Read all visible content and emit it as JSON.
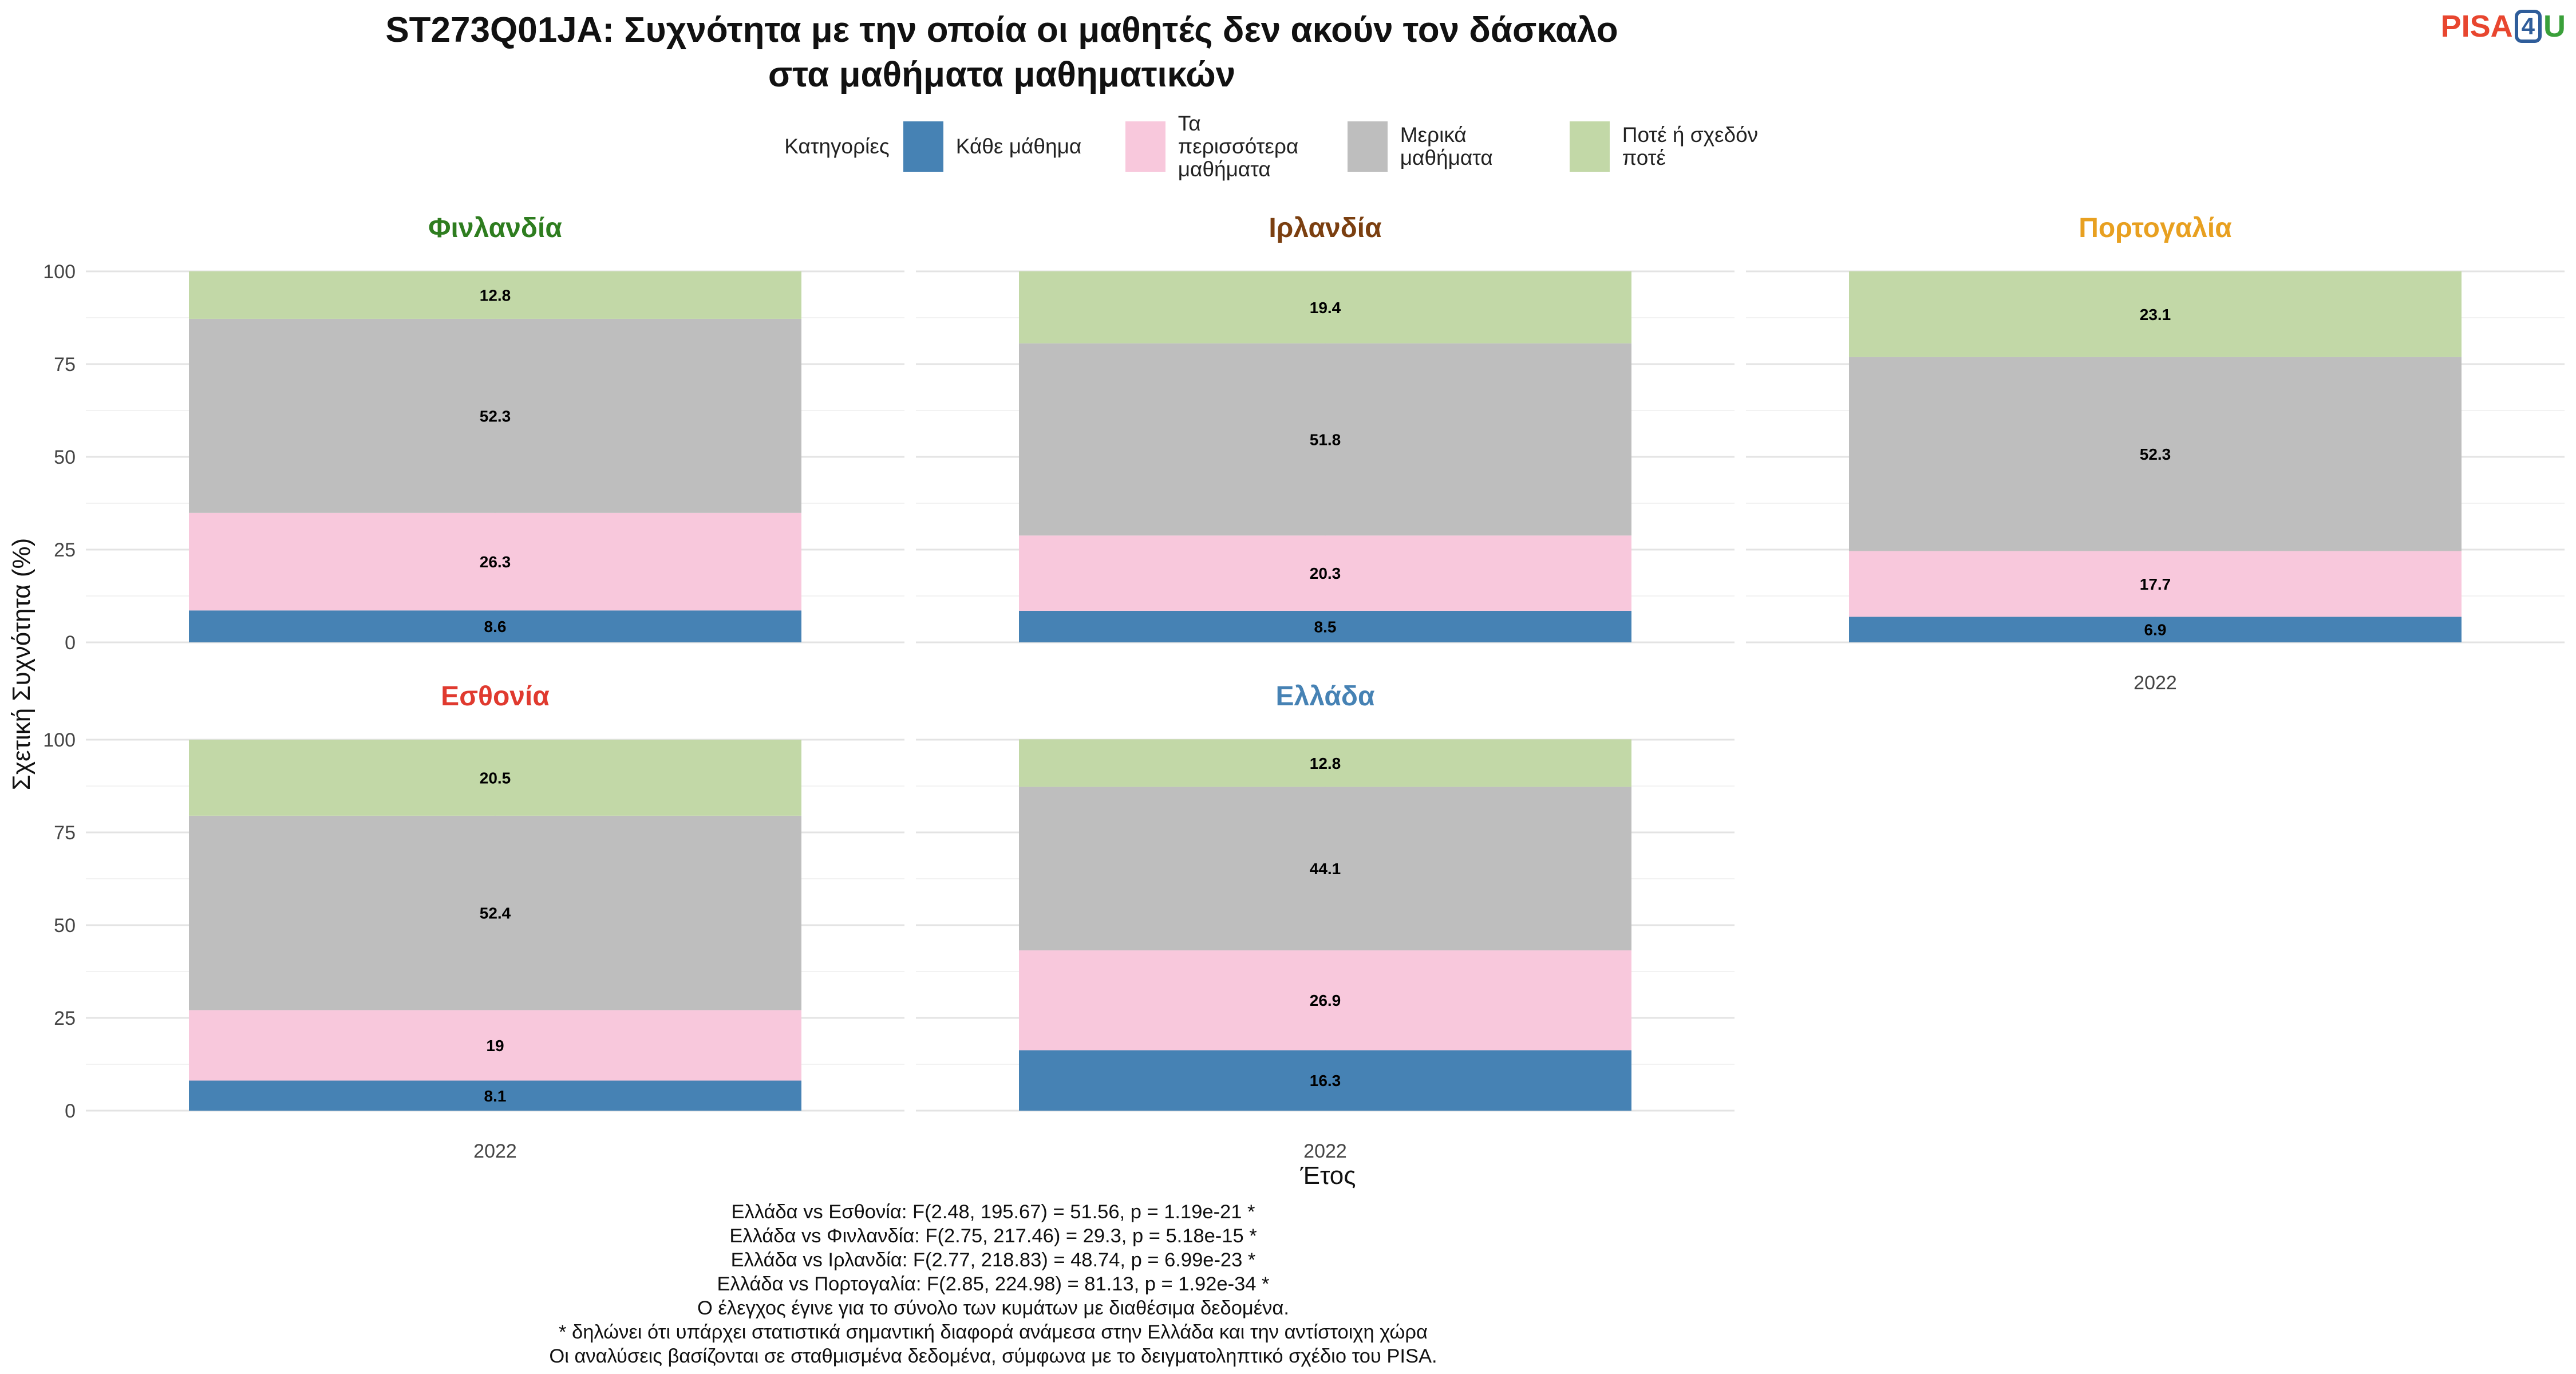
{
  "title_lines": [
    "ST273Q01JA: Συχνότητα με την οποία οι μαθητές δεν ακούν τον δάσκαλο",
    "στα μαθήματα μαθηματικών"
  ],
  "logo": {
    "pisa": "PISA",
    "four": "4",
    "u": "U"
  },
  "legend": {
    "title": "Κατηγορίες",
    "items": [
      {
        "label": "Κάθε μάθημα",
        "color": "#4682b4"
      },
      {
        "label": "Τα περισσότερα μαθήματα",
        "color": "#f8c8dc"
      },
      {
        "label": "Μερικά μαθήματα",
        "color": "#bebebe"
      },
      {
        "label": "Ποτέ ή σχεδόν ποτέ",
        "color": "#c2d8a7"
      }
    ]
  },
  "chart_data": {
    "type": "bar",
    "stacked": true,
    "xlabel": "Έτος",
    "ylabel": "Σχετική Συχνότητα (%)",
    "ylim": [
      0,
      100
    ],
    "yticks": [
      0,
      25,
      50,
      75,
      100
    ],
    "grid": true,
    "legend_position": "top",
    "series_names": [
      "Κάθε μάθημα",
      "Τα περισσότερα μαθήματα",
      "Μερικά μαθήματα",
      "Ποτέ ή σχεδόν ποτέ"
    ],
    "series_colors": [
      "#4682b4",
      "#f8c8dc",
      "#bebebe",
      "#c2d8a7"
    ],
    "panels": [
      {
        "country": "Φινλανδία",
        "color": "#2e7d1f",
        "category": "2022",
        "values": [
          8.6,
          26.3,
          52.3,
          12.8
        ]
      },
      {
        "country": "Ιρλανδία",
        "color": "#7b3f10",
        "category": "2022",
        "values": [
          8.5,
          20.3,
          51.8,
          19.4
        ]
      },
      {
        "country": "Πορτογαλία",
        "color": "#e8a020",
        "category": "2022",
        "values": [
          6.9,
          17.7,
          52.3,
          23.1
        ]
      },
      {
        "country": "Εσθονία",
        "color": "#e03a2f",
        "category": "2022",
        "values": [
          8.1,
          19,
          52.4,
          20.5
        ]
      },
      {
        "country": "Ελλάδα",
        "color": "#4682b4",
        "category": "2022",
        "values": [
          16.3,
          26.9,
          44.1,
          12.8
        ]
      }
    ]
  },
  "notes": [
    "Ελλάδα vs Εσθονία: F(2.48, 195.67) = 51.56, p = 1.19e-21 *",
    "Ελλάδα vs Φινλανδία: F(2.75, 217.46) = 29.3, p = 5.18e-15 *",
    "Ελλάδα vs Ιρλανδία: F(2.77, 218.83) = 48.74, p = 6.99e-23 *",
    "Ελλάδα vs Πορτογαλία: F(2.85, 224.98) = 81.13, p = 1.92e-34 *",
    "Ο έλεγχος έγινε για το σύνολο των κυμάτων με διαθέσιμα δεδομένα.",
    "* δηλώνει ότι υπάρχει στατιστικά σημαντική διαφορά ανάμεσα στην Ελλάδα και την αντίστοιχη χώρα",
    "Οι αναλύσεις βασίζονται σε σταθμισμένα δεδομένα, σύμφωνα με το δειγματοληπτικό σχέδιο του PISA."
  ]
}
